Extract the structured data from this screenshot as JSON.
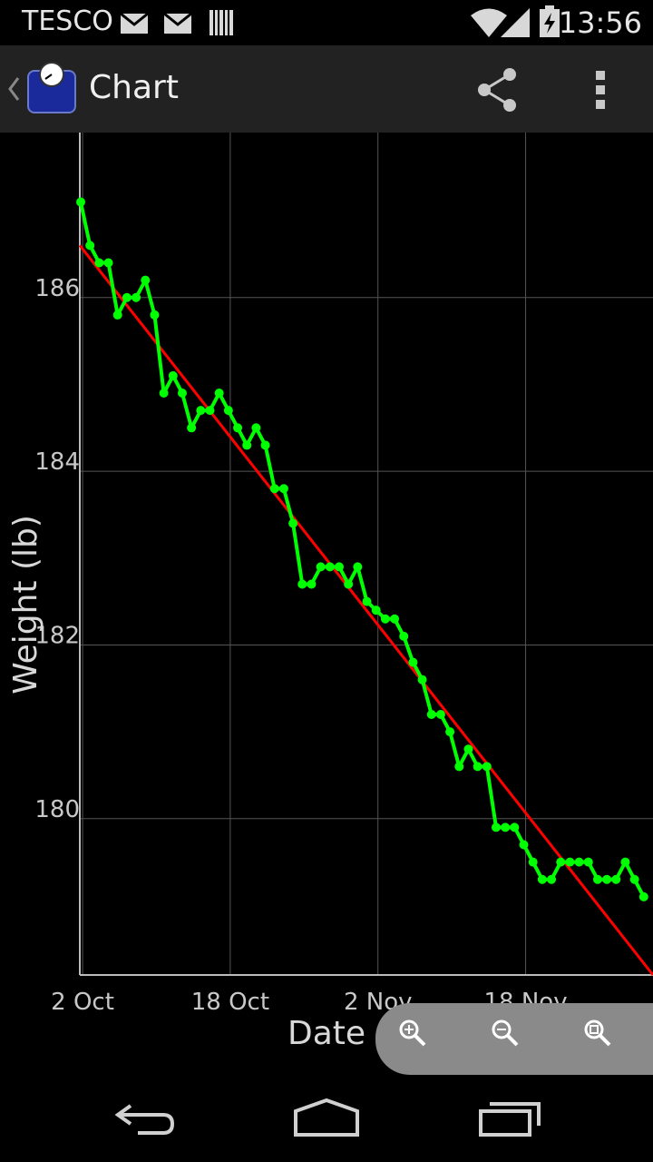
{
  "status_bar": {
    "carrier": "TESCO",
    "time": "13:56",
    "icons": [
      "mail-icon",
      "mail-icon",
      "barcode-icon",
      "wifi-icon",
      "signal-icon",
      "battery-charging-icon"
    ]
  },
  "action_bar": {
    "title": "Chart",
    "icons": [
      "back-chevron-icon",
      "app-scale-icon",
      "share-icon",
      "overflow-menu-icon"
    ]
  },
  "zoom_controls": [
    "zoom-in-icon",
    "zoom-out-icon",
    "zoom-reset-icon"
  ],
  "nav_bar": [
    "back-icon",
    "home-icon",
    "recents-icon"
  ],
  "colors": {
    "series": "#00ff00",
    "trend": "#ff0000",
    "grid": "#555555",
    "axis_text": "#c8c8c8",
    "background": "#000000"
  },
  "chart_data": {
    "type": "line",
    "xlabel": "Date",
    "ylabel": "Weight (lb)",
    "x_ticks": [
      {
        "day": 0,
        "label": "2 Oct"
      },
      {
        "day": 16,
        "label": "18 Oct"
      },
      {
        "day": 32,
        "label": "2 Nov"
      },
      {
        "day": 48,
        "label": "18 Nov"
      }
    ],
    "y_ticks": [
      {
        "value": 180,
        "label": "180"
      },
      {
        "value": 182,
        "label": "182"
      },
      {
        "value": 184,
        "label": "184"
      },
      {
        "value": 186,
        "label": "186"
      }
    ],
    "xlim": [
      -0.3,
      61.8
    ],
    "ylim": [
      178.2,
      187.9
    ],
    "grid": true,
    "series": [
      {
        "x": [
          -0.2,
          0.8,
          1.8,
          2.8,
          3.8,
          4.8,
          5.8,
          6.8,
          7.8,
          8.8,
          9.8,
          10.8,
          11.8,
          12.8,
          13.8,
          14.8,
          15.8,
          16.8,
          17.8,
          18.8,
          19.8,
          20.8,
          21.8,
          22.8,
          23.8,
          24.8,
          25.8,
          26.8,
          27.8,
          28.8,
          29.8,
          30.8,
          31.8,
          32.8,
          33.8,
          34.8,
          35.8,
          36.8,
          37.8,
          38.8,
          39.8,
          40.8,
          41.8,
          42.8,
          43.8,
          44.8,
          45.8,
          46.8,
          47.8,
          48.8,
          49.8,
          50.8,
          51.8,
          52.8,
          53.8,
          54.8,
          55.8,
          56.8,
          57.8,
          58.8,
          59.8,
          60.8
        ],
        "y": [
          187.1,
          186.6,
          186.4,
          186.4,
          185.8,
          186.0,
          186.0,
          186.2,
          185.8,
          184.9,
          185.1,
          184.9,
          184.5,
          184.7,
          184.7,
          184.9,
          184.7,
          184.5,
          184.3,
          184.5,
          184.3,
          183.8,
          183.8,
          183.4,
          182.7,
          182.7,
          182.9,
          182.9,
          182.9,
          182.7,
          182.9,
          182.5,
          182.4,
          182.3,
          182.3,
          182.1,
          181.8,
          181.6,
          181.2,
          181.2,
          181.0,
          180.6,
          180.8,
          180.6,
          180.6,
          179.9,
          179.9,
          179.9,
          179.7,
          179.5,
          179.3,
          179.3,
          179.5,
          179.5,
          179.5,
          179.5,
          179.3,
          179.3,
          179.3,
          179.5,
          179.3,
          179.1
        ]
      }
    ],
    "trend_line": {
      "x": [
        -0.3,
        61.8
      ],
      "y": [
        186.6,
        178.2
      ]
    }
  }
}
